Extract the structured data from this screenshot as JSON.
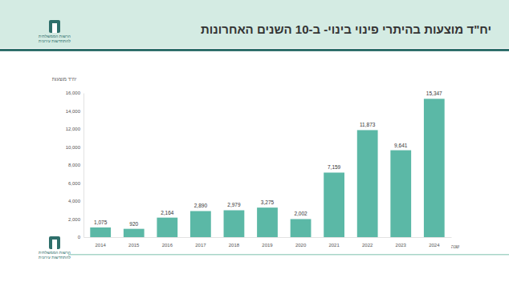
{
  "chart_data": {
    "type": "bar",
    "title": "יח\"ד מוצעות בהיתרי פינוי בינוי- ב-10 השנים האחרונות",
    "y_label": "יח\"ד מוצעות",
    "x_label": "שנה",
    "logo_text": [
      "הרשות הממשלתית",
      "להתחדשות עירונית"
    ],
    "categories": [
      "2014",
      "2015",
      "2016",
      "2017",
      "2018",
      "2019",
      "2020",
      "2021",
      "2022",
      "2023",
      "2024"
    ],
    "values": [
      1075,
      920,
      2164,
      2890,
      2979,
      3275,
      2002,
      7159,
      11873,
      9641,
      15347
    ],
    "value_labels": [
      "1,075",
      "920",
      "2,164",
      "2,890",
      "2,979",
      "3,275",
      "2,002",
      "7,159",
      "11,873",
      "9,641",
      "15,347"
    ],
    "color": "#5bb8a6",
    "ylim": [
      0,
      16000
    ],
    "yticks": [
      0,
      {
        "value": 2000,
        "label": "2,000"
      },
      {
        "value": 4000,
        "label": "4,000"
      },
      {
        "value": 6000,
        "label": "6,000"
      },
      {
        "value": 8000,
        "label": "8,000"
      },
      {
        "value": 10000,
        "label": "10,000"
      },
      {
        "value": 12000,
        "label": "12,000"
      },
      {
        "value": 14000,
        "label": "14,000"
      },
      {
        "value": 16000,
        "label": "16,000"
      }
    ],
    "grid": false,
    "data_labels": true
  }
}
